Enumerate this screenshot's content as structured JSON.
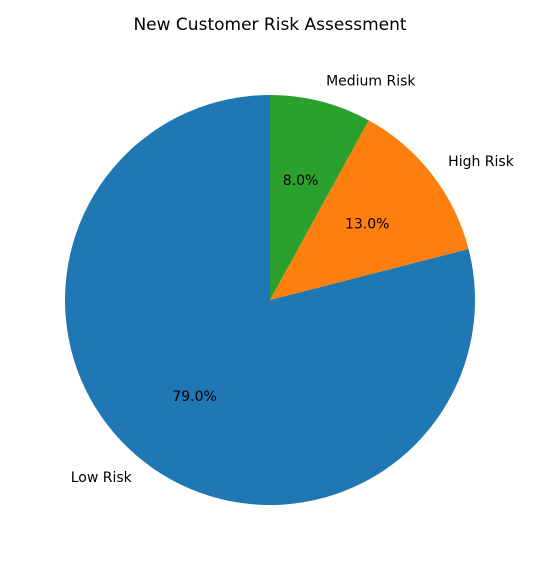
{
  "chart_data": {
    "type": "pie",
    "title": "New Customer Risk Assessment",
    "categories": [
      "Low Risk",
      "High Risk",
      "Medium Risk"
    ],
    "values": [
      79,
      13,
      8
    ],
    "value_labels": [
      "79.0%",
      "13.0%",
      "8.0%"
    ],
    "colors": [
      "#1f77b4",
      "#ff7f0e",
      "#2ca02c"
    ]
  }
}
